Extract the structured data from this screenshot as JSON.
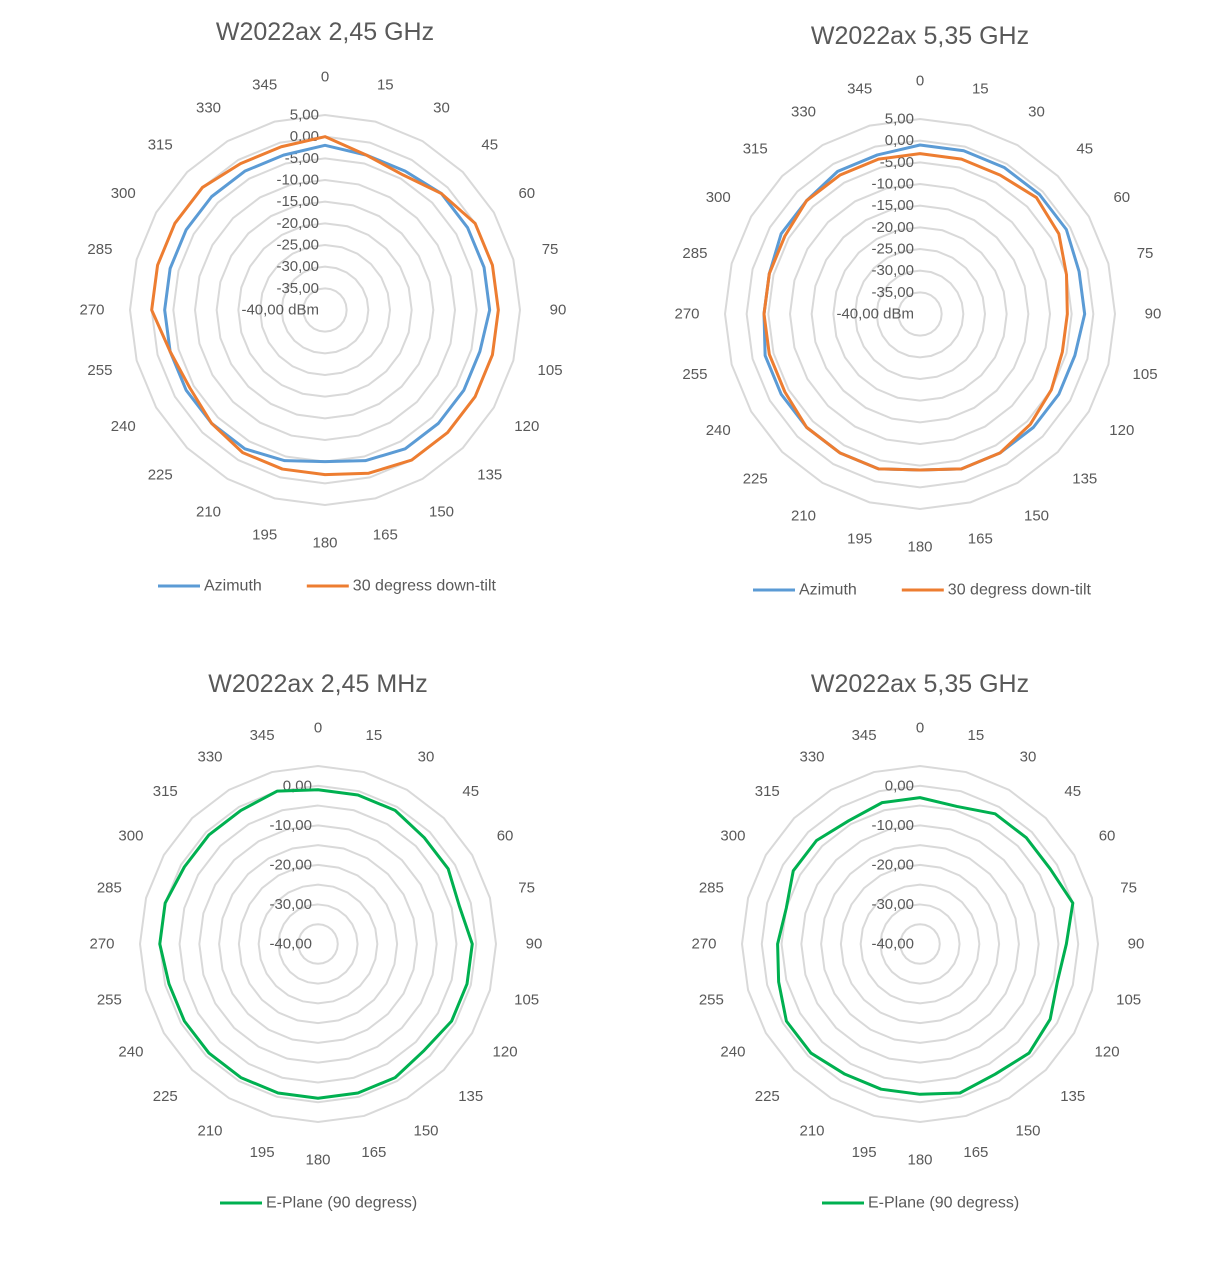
{
  "colors": {
    "azimuth": "#5b9bd5",
    "downtilt": "#ed7d31",
    "eplane": "#00b050",
    "grid": "#d9d9d9",
    "text": "#595959"
  },
  "chart_data": [
    {
      "type": "radar",
      "title": "W2022ax 2,45 GHz",
      "angles": [
        "0",
        "15",
        "30",
        "45",
        "60",
        "75",
        "90",
        "105",
        "120",
        "135",
        "150",
        "165",
        "180",
        "195",
        "210",
        "225",
        "240",
        "255",
        "270",
        "285",
        "300",
        "315",
        "330",
        "345"
      ],
      "radial_ticks": [
        "5,00",
        "0,00",
        "-5,00",
        "-10,00",
        "-15,00",
        "-20,00",
        "-25,00",
        "-30,00",
        "-35,00",
        "-40,00 dBm"
      ],
      "rlim": [
        -40,
        5
      ],
      "grid": true,
      "legend_position": "bottom",
      "series": [
        {
          "name": "Azimuth",
          "color": "#5b9bd5",
          "values": [
            -2,
            -3,
            -3,
            -2,
            -2,
            -2,
            -2,
            -3,
            -3,
            -3,
            -3,
            -4,
            -5,
            -4,
            -3,
            -3,
            -3,
            -3,
            -3,
            -3,
            -3,
            -3,
            -3,
            -3
          ]
        },
        {
          "name": "30 degress down-tilt",
          "color": "#ed7d31",
          "values": [
            0,
            -3,
            -4,
            -2,
            0,
            0,
            0,
            0,
            0,
            0,
            0,
            -1,
            -2,
            -2,
            -2,
            -3,
            -4,
            -3,
            0,
            0,
            0,
            0,
            -1,
            -1
          ]
        }
      ]
    },
    {
      "type": "radar",
      "title": "W2022ax 5,35 GHz",
      "angles": [
        "0",
        "15",
        "30",
        "45",
        "60",
        "75",
        "90",
        "105",
        "120",
        "135",
        "150",
        "165",
        "180",
        "195",
        "210",
        "225",
        "240",
        "255",
        "270",
        "285",
        "300",
        "315",
        "330",
        "345"
      ],
      "radial_ticks": [
        "5,00",
        "0,00",
        "-5,00",
        "-10,00",
        "-15,00",
        "-20,00",
        "-25,00",
        "-30,00",
        "-35,00",
        "-40,00 dBm"
      ],
      "rlim": [
        -40,
        5
      ],
      "grid": true,
      "legend_position": "bottom",
      "series": [
        {
          "name": "Azimuth",
          "color": "#5b9bd5",
          "values": [
            -1,
            -1,
            -1,
            -1,
            -1,
            -2,
            -2,
            -3,
            -3,
            -3,
            -3,
            -3,
            -4,
            -3,
            -3,
            -3,
            -3,
            -3,
            -4,
            -4,
            -3,
            -3,
            -2,
            -2
          ]
        },
        {
          "name": "30 degress down-tilt",
          "color": "#ed7d31",
          "values": [
            -3,
            -3,
            -3,
            -2,
            -3,
            -5,
            -6,
            -6,
            -5,
            -4,
            -3,
            -3,
            -4,
            -3,
            -3,
            -3,
            -4,
            -4,
            -4,
            -4,
            -4,
            -3,
            -3,
            -3
          ]
        }
      ]
    },
    {
      "type": "radar",
      "title": "W2022ax 2,45 MHz",
      "angles": [
        "0",
        "15",
        "30",
        "45",
        "60",
        "75",
        "90",
        "105",
        "120",
        "135",
        "150",
        "165",
        "180",
        "195",
        "210",
        "225",
        "240",
        "255",
        "270",
        "285",
        "300",
        "315",
        "330",
        "345"
      ],
      "radial_ticks": [
        "0,00",
        "-10,00",
        "-20,00",
        "-30,00",
        "-40,00"
      ],
      "rlim": [
        -40,
        5
      ],
      "grid": true,
      "legend_position": "bottom",
      "series": [
        {
          "name": "E-Plane (90 degress)",
          "color": "#00b050",
          "values": [
            -1,
            -1,
            -1,
            -2,
            -2,
            -3,
            -1,
            -1,
            -1,
            -2,
            -1,
            -1,
            -1,
            -1,
            -1,
            -1,
            -1,
            -1,
            0,
            0,
            -1,
            -1,
            -1,
            0
          ]
        }
      ]
    },
    {
      "type": "radar",
      "title": "W2022ax 5,35 GHz",
      "angles": [
        "0",
        "15",
        "30",
        "45",
        "60",
        "75",
        "90",
        "105",
        "120",
        "135",
        "150",
        "165",
        "180",
        "195",
        "210",
        "225",
        "240",
        "255",
        "270",
        "285",
        "300",
        "315",
        "330",
        "345"
      ],
      "radial_ticks": [
        "0,00",
        "-10,00",
        "-20,00",
        "-30,00",
        "-40,00"
      ],
      "rlim": [
        -40,
        5
      ],
      "grid": true,
      "legend_position": "bottom",
      "series": [
        {
          "name": "E-Plane (90 degress)",
          "color": "#00b050",
          "values": [
            -3,
            -4,
            -2,
            -2,
            -2,
            0,
            -3,
            -4,
            -2,
            -1,
            -2,
            -1,
            -2,
            -2,
            -2,
            -1,
            -1,
            -3,
            -4,
            -5,
            -3,
            -3,
            -4,
            -3
          ]
        }
      ]
    }
  ]
}
